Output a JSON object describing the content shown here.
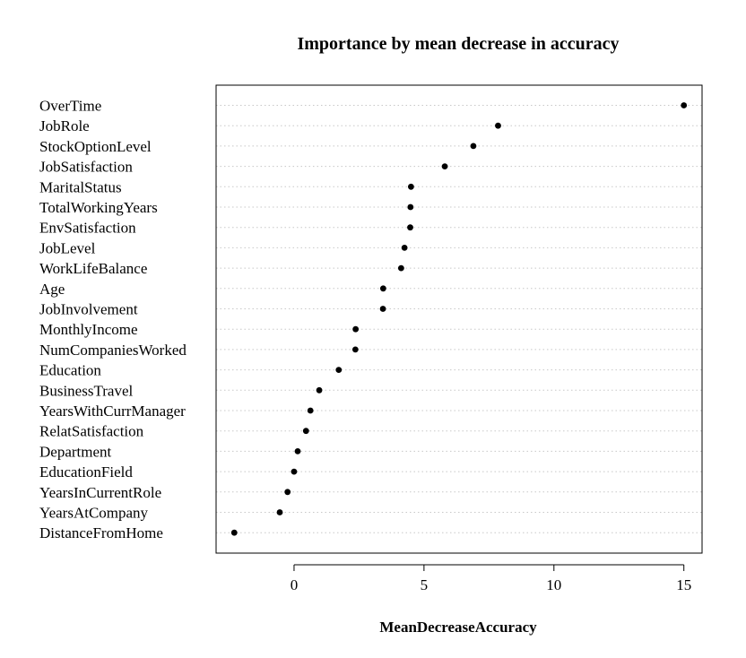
{
  "chart_data": {
    "type": "scatter",
    "title": "Importance by mean decrease in accuracy",
    "xlabel": "MeanDecreaseAccuracy",
    "ylabel": "",
    "xlim": [
      -3.0,
      15.7
    ],
    "xticks": [
      0,
      5,
      10,
      15
    ],
    "xtick_labels": [
      "0",
      "5",
      "10",
      "15"
    ],
    "grid": "dotted horizontal guide lines",
    "point_color": "#000000",
    "categories": [
      "OverTime",
      "JobRole",
      "StockOptionLevel",
      "JobSatisfaction",
      "MaritalStatus",
      "TotalWorkingYears",
      "EnvSatisfaction",
      "JobLevel",
      "WorkLifeBalance",
      "Age",
      "JobInvolvement",
      "MonthlyIncome",
      "NumCompaniesWorked",
      "Education",
      "BusinessTravel",
      "YearsWithCurrManager",
      "RelatSatisfaction",
      "Department",
      "EducationField",
      "YearsInCurrentRole",
      "YearsAtCompany",
      "DistanceFromHome"
    ],
    "values": [
      15.0,
      7.85,
      6.9,
      5.8,
      4.5,
      4.48,
      4.47,
      4.25,
      4.12,
      3.43,
      3.42,
      2.37,
      2.36,
      1.72,
      0.97,
      0.63,
      0.46,
      0.14,
      0.0,
      -0.25,
      -0.55,
      -2.3
    ]
  }
}
